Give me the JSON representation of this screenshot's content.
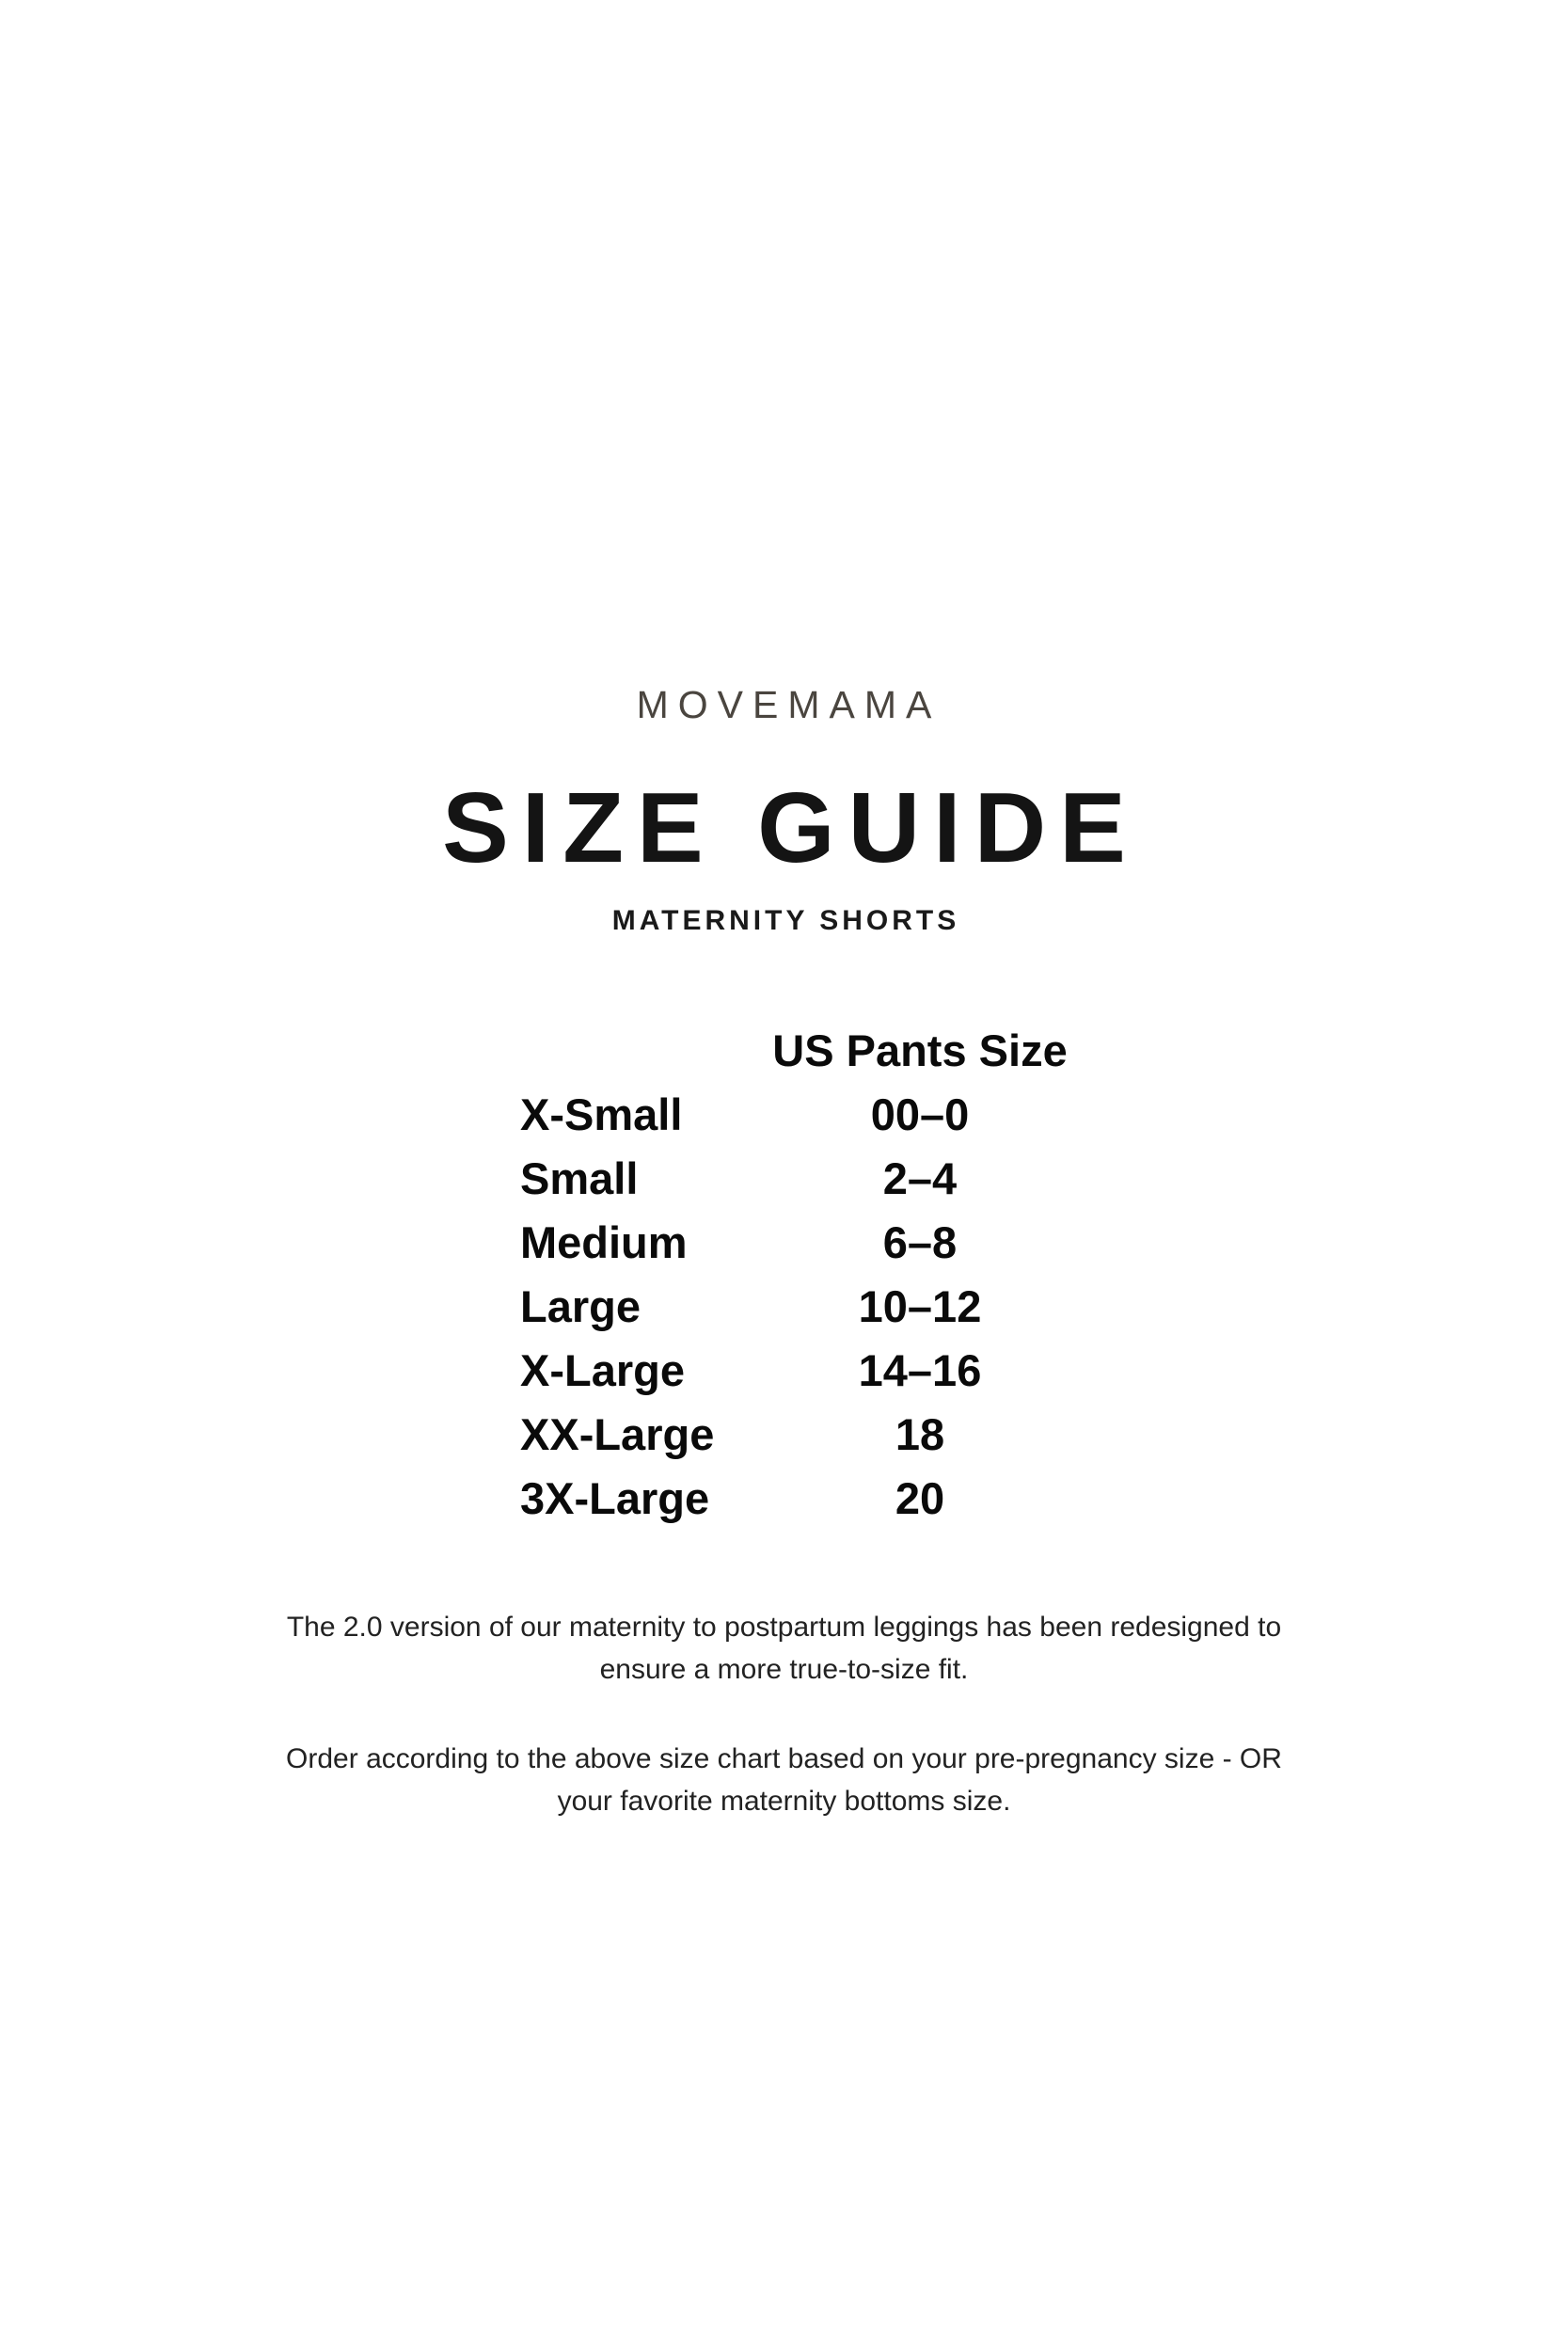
{
  "brand": "MOVEMAMA",
  "title": "SIZE GUIDE",
  "subtitle": "MATERNITY SHORTS",
  "size_table": {
    "column_header": "US Pants Size",
    "rows": [
      {
        "size": "X-Small",
        "us_pants_size": "00–0"
      },
      {
        "size": "Small",
        "us_pants_size": "2–4"
      },
      {
        "size": "Medium",
        "us_pants_size": "6–8"
      },
      {
        "size": "Large",
        "us_pants_size": "10–12"
      },
      {
        "size": "X-Large",
        "us_pants_size": "14–16"
      },
      {
        "size": "XX-Large",
        "us_pants_size": "18"
      },
      {
        "size": "3X-Large",
        "us_pants_size": "20"
      }
    ]
  },
  "notes": [
    {
      "lines": [
        "The 2.0 version of our maternity to postpartum leggings has been redesigned to",
        "ensure a more true-to-size fit."
      ]
    },
    {
      "lines": [
        "Order according to the above size chart based on your pre-pregnancy size - OR",
        "your favorite maternity bottoms size."
      ]
    }
  ],
  "colors": {
    "background": "#ffffff",
    "brand_text": "#4a453f",
    "heading_text": "#141414",
    "table_text": "#0a0a0a",
    "note_text": "#222222"
  }
}
